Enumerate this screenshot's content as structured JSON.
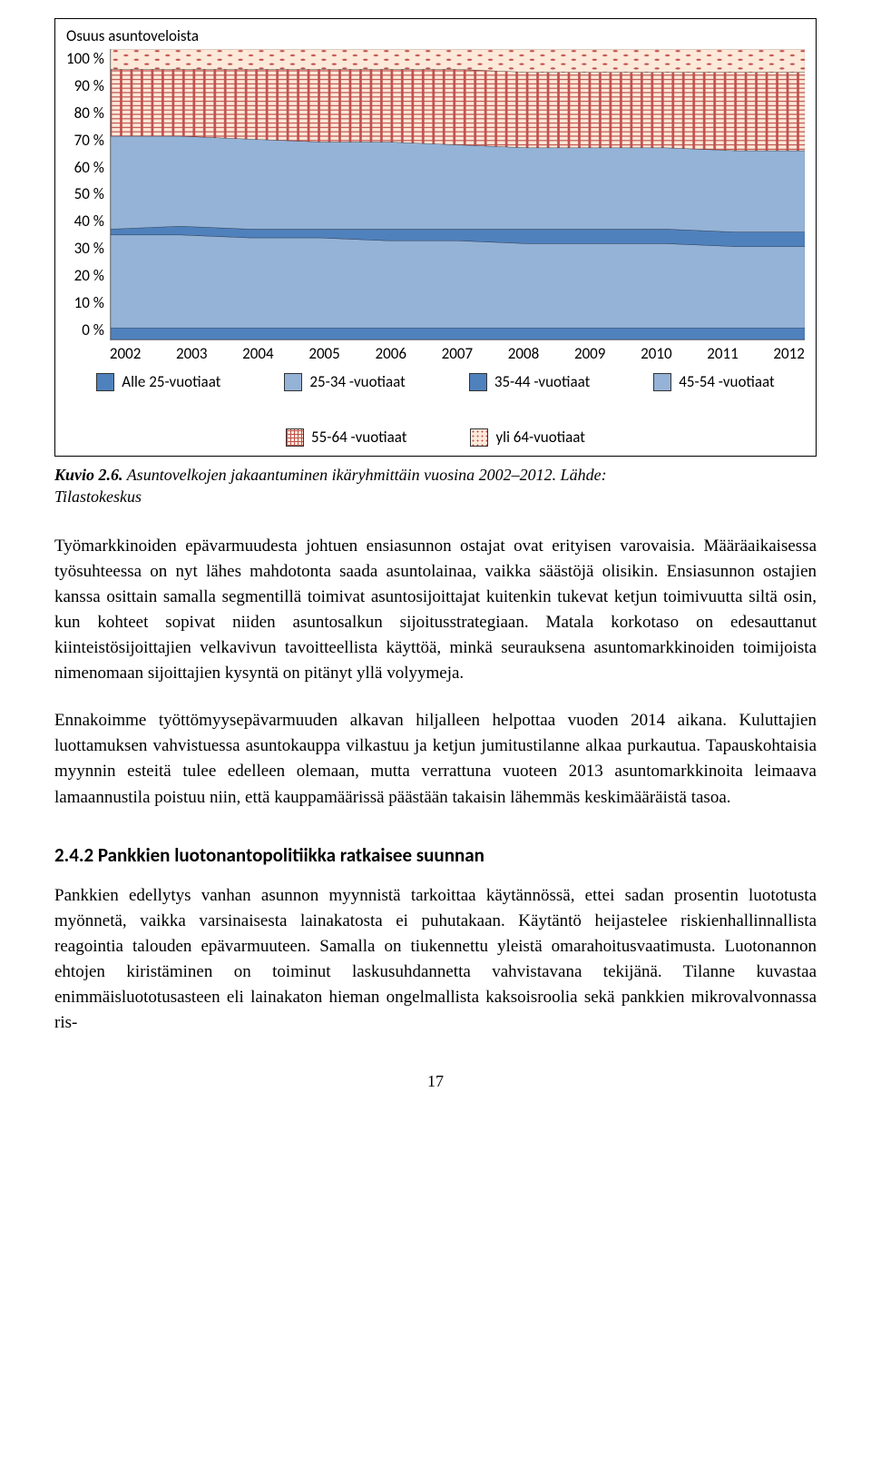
{
  "chart": {
    "title": "Osuus asuntoveloista",
    "type": "stacked-area",
    "y_ticks": [
      "100 %",
      "90 %",
      "80 %",
      "70 %",
      "60 %",
      "50 %",
      "40 %",
      "30 %",
      "20 %",
      "10 %",
      "0 %"
    ],
    "x_ticks": [
      "2002",
      "2003",
      "2004",
      "2005",
      "2006",
      "2007",
      "2008",
      "2009",
      "2010",
      "2011",
      "2012"
    ],
    "ylim": [
      0,
      100
    ],
    "series": [
      {
        "name": "Alle 25-vuotiaat",
        "label": "Alle 25-vuotiaat",
        "color": "#4f81bd",
        "pattern": "solid",
        "values": [
          4,
          4,
          4,
          4,
          4,
          4,
          4,
          4,
          4,
          4,
          4
        ]
      },
      {
        "name": "25-34 -vuotiaat",
        "label": "25-34 -vuotiaat",
        "color": "#95b3d7",
        "pattern": "solid",
        "values": [
          32,
          32,
          31,
          31,
          30,
          30,
          29,
          29,
          29,
          28,
          28
        ]
      },
      {
        "name": "35-44 -vuotiaat",
        "label": "35-44 -vuotiaat",
        "color": "#4f81bd",
        "pattern": "solid",
        "values": [
          2,
          3,
          3,
          3,
          4,
          4,
          5,
          5,
          5,
          5,
          5
        ]
      },
      {
        "name": "45-54 -vuotiaat",
        "label": "45-54 -vuotiaat",
        "color": "#95b3d7",
        "pattern": "solid",
        "values": [
          32,
          31,
          31,
          30,
          30,
          29,
          28,
          28,
          28,
          28,
          28
        ]
      },
      {
        "name": "55-64 -vuotiaat",
        "label": "55-64 -vuotiaat",
        "color": "#c0504d",
        "pattern": "crosshatch",
        "values": [
          23,
          23,
          24,
          25,
          25,
          26,
          26,
          26,
          26,
          27,
          27
        ]
      },
      {
        "name": "yli 64-vuotiaat",
        "label": "yli 64-vuotiaat",
        "color": "#c0504d",
        "pattern": "dots",
        "values": [
          7,
          7,
          7,
          7,
          7,
          7,
          8,
          8,
          8,
          8,
          8
        ]
      }
    ],
    "font_family": "Calibri, Arial, sans-serif",
    "tick_fontsize": 17,
    "background_color": "#ffffff",
    "grid_color": "#d9d9d9",
    "border_color": "#000000"
  },
  "caption": {
    "label": "Kuvio 2.6.",
    "text_a": " Asuntovelkojen jakaantuminen ikäryhmittäin vuosina 2002–2012. Lähde:",
    "text_b": "Tilastokeskus"
  },
  "paragraphs": {
    "p1": "Työmarkkinoiden epävarmuudesta johtuen ensiasunnon ostajat ovat erityisen varovaisia. Määräaikaisessa työsuhteessa on nyt lähes mahdotonta saada asuntolainaa, vaikka säästöjä olisikin. Ensiasunnon ostajien kanssa osittain samalla segmentillä toimivat asuntosijoittajat kuitenkin tukevat ketjun toimivuutta siltä osin, kun kohteet sopivat niiden asuntosalkun sijoitusstrategiaan. Matala korkotaso on edesauttanut kiinteistösijoittajien velkavivun tavoitteellista käyttöä, minkä seurauksena asuntomarkkinoiden toimijoista nimenomaan sijoittajien kysyntä on pitänyt yllä volyymeja.",
    "p2": "Ennakoimme työttömyysepävarmuuden alkavan hiljalleen helpottaa vuoden 2014 aikana. Kuluttajien luottamuksen vahvistuessa asuntokauppa vilkastuu ja ketjun jumitustilanne alkaa purkautua. Tapauskohtaisia myynnin esteitä tulee edelleen olemaan, mutta verrattuna vuoteen 2013 asuntomarkkinoita leimaava lamaannustila poistuu niin, että kauppamäärissä päästään takaisin lähemmäs keskimääräistä tasoa.",
    "p3": "Pankkien edellytys vanhan asunnon myynnistä tarkoittaa käytännössä, ettei sadan prosentin luototusta myönnetä, vaikka varsinaisesta lainakatosta ei puhutakaan. Käytäntö heijastelee riskienhallinnallista reagointia talouden epävarmuuteen. Samalla on tiukennettu yleistä omarahoitusvaatimusta. Luotonannon ehtojen kiristäminen on toiminut laskusuhdannetta vahvistavana tekijänä. Tilanne kuvastaa enimmäisluototusasteen eli lainakaton hieman ongelmallista kaksoisroolia sekä pankkien mikrovalvonnassa ris-"
  },
  "section_heading": "2.4.2  Pankkien luotonantopolitiikka ratkaisee suunnan",
  "page_number": "17"
}
